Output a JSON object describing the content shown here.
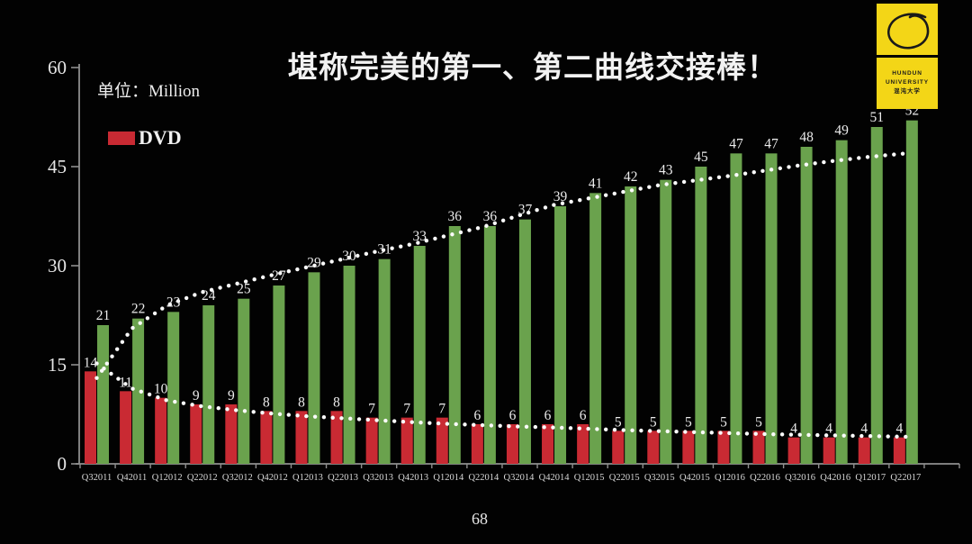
{
  "title": "堪称完美的第一、第二曲线交接棒！",
  "unit_label": "单位：Million",
  "legend": {
    "dvd_label": "DVD"
  },
  "page_number": "68",
  "logo": {
    "icon": "hand-drawn-circle-icon",
    "line1": "HUNDUN",
    "line2": "UNIVERSITY",
    "line3": "混沌大学",
    "background": "#f3d617"
  },
  "colors": {
    "background": "#020202",
    "bar_red": "#c92a33",
    "bar_green": "#6aa24d",
    "text": "#ededed",
    "axis": "#8f8f8f",
    "trend_dots": "#fbfbfb"
  },
  "chart_data": {
    "type": "bar",
    "title": "堪称完美的第一、第二曲线交接棒！",
    "unit": "Million",
    "grid": false,
    "legend_position": "top-left",
    "ylim": [
      0,
      60
    ],
    "yticks": [
      0,
      15,
      30,
      45,
      60
    ],
    "categories": [
      "Q32011",
      "Q42011",
      "Q12012",
      "Q22012",
      "Q32012",
      "Q42012",
      "Q12013",
      "Q22013",
      "Q32013",
      "Q42013",
      "Q12014",
      "Q22014",
      "Q32014",
      "Q42014",
      "Q12015",
      "Q22015",
      "Q32015",
      "Q42015",
      "Q12016",
      "Q22016",
      "Q32016",
      "Q42016",
      "Q12017",
      "Q22017"
    ],
    "series": [
      {
        "key": "dvd",
        "legend_label": "DVD",
        "color": "#c92a33",
        "values": [
          14,
          11,
          10,
          9,
          9,
          8,
          8,
          8,
          7,
          7,
          7,
          6,
          6,
          6,
          6,
          5,
          5,
          5,
          5,
          5,
          4,
          4,
          4,
          4
        ]
      },
      {
        "key": "green",
        "legend_label": null,
        "color": "#6aa24d",
        "values": [
          21,
          22,
          23,
          24,
          25,
          27,
          29,
          30,
          31,
          33,
          36,
          36,
          37,
          39,
          41,
          42,
          43,
          45,
          47,
          47,
          48,
          49,
          51,
          52
        ]
      }
    ],
    "trend_curves": [
      {
        "key": "second-curve-dotted",
        "style": "dotted",
        "color": "#fbfbfb",
        "values": [
          13,
          20.5,
          24,
          26,
          27.3,
          28.6,
          29.8,
          31,
          32.2,
          33.3,
          34.6,
          35.9,
          37.6,
          39.2,
          40.2,
          41.2,
          42.2,
          42.9,
          43.6,
          44.4,
          45.2,
          45.9,
          46.5,
          47
        ]
      },
      {
        "key": "first-curve-dotted",
        "style": "dotted",
        "color": "#fbfbfb",
        "values": [
          15.2,
          11.4,
          9.6,
          8.7,
          8.1,
          7.6,
          7.2,
          6.9,
          6.6,
          6.3,
          6.05,
          5.85,
          5.65,
          5.5,
          5.3,
          5.1,
          4.95,
          4.8,
          4.65,
          4.5,
          4.4,
          4.3,
          4.2,
          4.1
        ]
      }
    ]
  }
}
